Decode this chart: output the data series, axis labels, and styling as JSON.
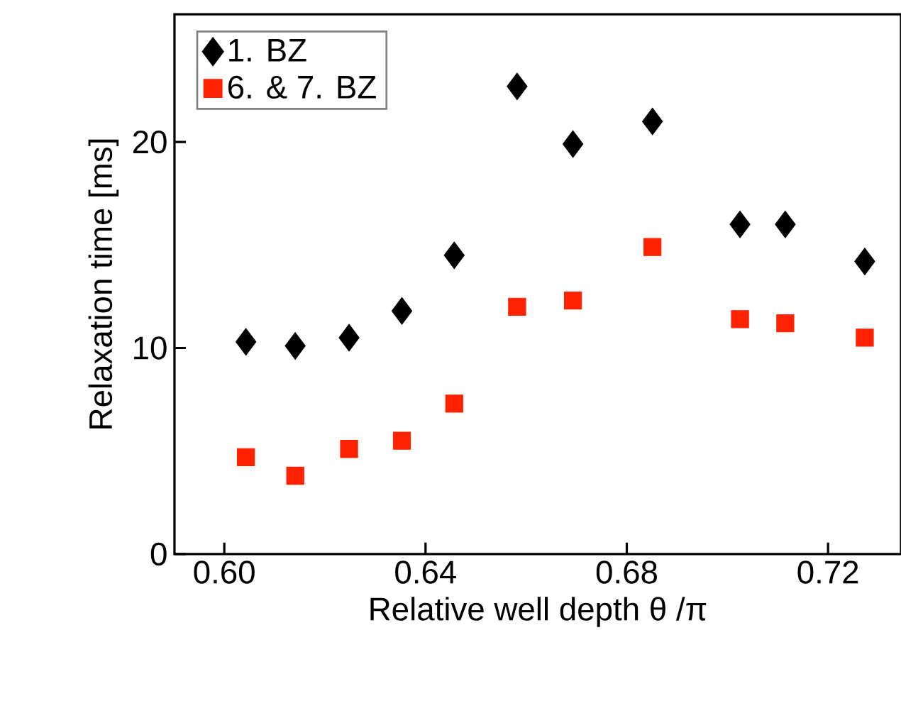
{
  "chart_data": {
    "type": "scatter",
    "xlabel": "Relative well depth  θ /π",
    "ylabel": "Relaxation time [ms]",
    "xlim": [
      0.5901,
      0.7345
    ],
    "ylim": [
      0,
      26.2
    ],
    "xticks": [
      {
        "value": 0.6,
        "label": "0.60"
      },
      {
        "value": 0.64,
        "label": "0.64"
      },
      {
        "value": 0.68,
        "label": "0.68"
      },
      {
        "value": 0.72,
        "label": "0.72"
      }
    ],
    "yticks": [
      0,
      10,
      20
    ],
    "grid": false,
    "legend": "top left",
    "series": [
      {
        "name": "1. BZ",
        "color": "#000000",
        "marker": "diamond",
        "x": [
          0.6043,
          0.6141,
          0.6248,
          0.6353,
          0.6457,
          0.6582,
          0.6693,
          0.6851,
          0.7025,
          0.7115,
          0.7273
        ],
        "values": [
          10.3,
          10.1,
          10.5,
          11.8,
          14.5,
          22.7,
          19.9,
          21.0,
          16.0,
          16.0,
          14.2
        ]
      },
      {
        "name": "6. & 7. BZ",
        "color": "#ff2200",
        "marker": "square",
        "x": [
          0.6043,
          0.6141,
          0.6248,
          0.6353,
          0.6457,
          0.6582,
          0.6693,
          0.6851,
          0.7025,
          0.7115,
          0.7273
        ],
        "values": [
          4.7,
          3.8,
          5.1,
          5.5,
          7.3,
          12.0,
          12.3,
          14.9,
          11.4,
          11.2,
          10.5
        ]
      }
    ]
  }
}
